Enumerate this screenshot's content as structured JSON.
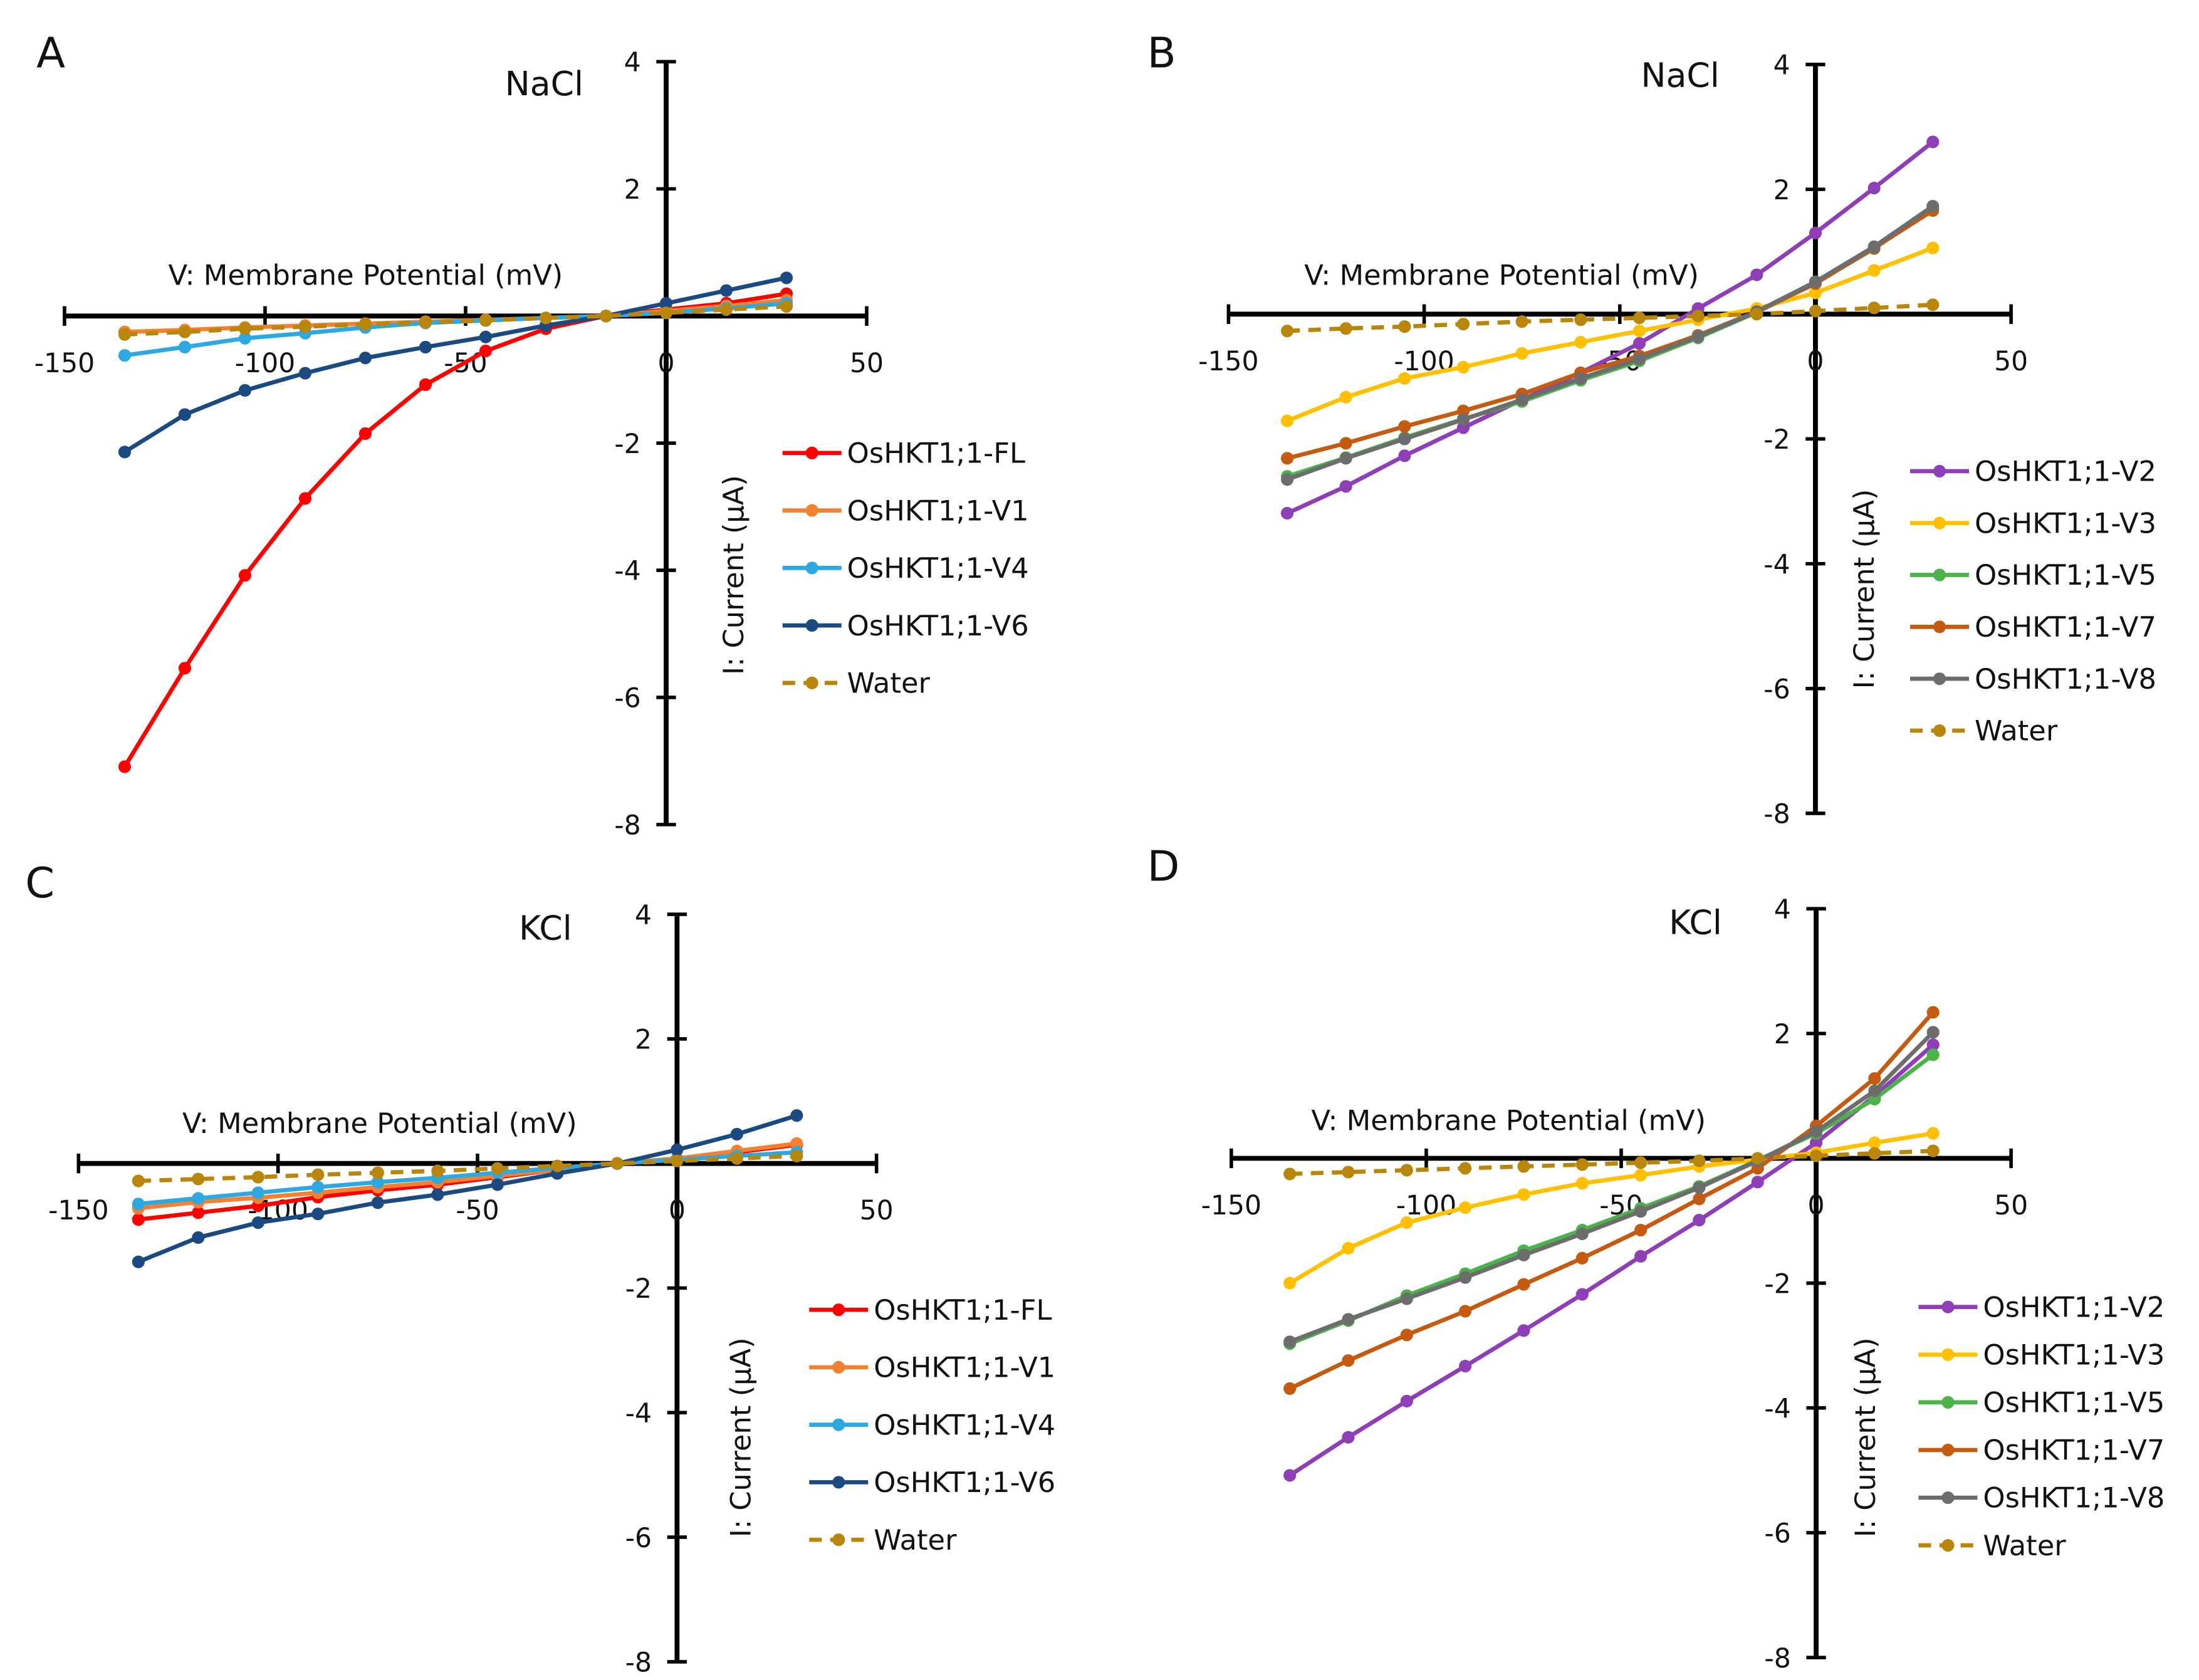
{
  "chart_data": [
    {
      "panel": "A",
      "type": "line",
      "title": "NaCl",
      "xlabel": "V: Membrane Potential (mV)",
      "ylabel": "I: Current (µA)",
      "xlim": [
        -150,
        50
      ],
      "ylim": [
        -8,
        4
      ],
      "xticks": [
        -150,
        -100,
        -50,
        0,
        50
      ],
      "yticks": [
        4,
        2,
        -2,
        -4,
        -6,
        -8
      ],
      "x": [
        -135,
        -120,
        -105,
        -90,
        -75,
        -60,
        -45,
        -30,
        -15,
        0,
        15,
        30
      ],
      "series": [
        {
          "name": "OsHKT1;1-FL",
          "color": "#ff0000",
          "dashed": false,
          "values": [
            -7.09,
            -5.54,
            -4.08,
            -2.87,
            -1.85,
            -1.08,
            -0.55,
            -0.2,
            0,
            0.1,
            0.2,
            0.35
          ]
        },
        {
          "name": "OsHKT1;1-V1",
          "color": "#f4812f",
          "dashed": false,
          "values": [
            -0.25,
            -0.22,
            -0.18,
            -0.15,
            -0.12,
            -0.09,
            -0.06,
            -0.03,
            0,
            0.08,
            0.16,
            0.25
          ]
        },
        {
          "name": "OsHKT1;1-V4",
          "color": "#2ea8e0",
          "dashed": false,
          "values": [
            -0.62,
            -0.49,
            -0.35,
            -0.27,
            -0.18,
            -0.11,
            -0.07,
            -0.03,
            0,
            0.05,
            0.12,
            0.2
          ]
        },
        {
          "name": "OsHKT1;1-V6",
          "color": "#1a4a80",
          "dashed": false,
          "values": [
            -2.14,
            -1.55,
            -1.17,
            -0.9,
            -0.66,
            -0.49,
            -0.33,
            -0.15,
            0,
            0.2,
            0.4,
            0.6
          ]
        },
        {
          "name": "Water",
          "color": "#b8860b",
          "dashed": true,
          "values": [
            -0.29,
            -0.25,
            -0.2,
            -0.17,
            -0.13,
            -0.1,
            -0.07,
            -0.03,
            0,
            0.05,
            0.1,
            0.15
          ]
        }
      ]
    },
    {
      "panel": "B",
      "type": "line",
      "title": "NaCl",
      "xlabel": "V: Membrane Potential (mV)",
      "ylabel": "I: Current (µA)",
      "xlim": [
        -150,
        50
      ],
      "ylim": [
        -8,
        4
      ],
      "xticks": [
        -150,
        -100,
        -50,
        0,
        50
      ],
      "yticks": [
        4,
        2,
        -2,
        -4,
        -6,
        -8
      ],
      "x": [
        -135,
        -120,
        -105,
        -90,
        -75,
        -60,
        -45,
        -30,
        -15,
        0,
        15,
        30
      ],
      "series": [
        {
          "name": "OsHKT1;1-V2",
          "color": "#8e3fb5",
          "dashed": false,
          "values": [
            -3.19,
            -2.76,
            -2.27,
            -1.82,
            -1.37,
            -0.94,
            -0.47,
            0.09,
            0.63,
            1.3,
            2.02,
            2.76
          ]
        },
        {
          "name": "OsHKT1;1-V3",
          "color": "#ffc000",
          "dashed": false,
          "values": [
            -1.71,
            -1.33,
            -1.03,
            -0.85,
            -0.63,
            -0.45,
            -0.27,
            -0.09,
            0.09,
            0.34,
            0.7,
            1.06
          ]
        },
        {
          "name": "OsHKT1;1-V5",
          "color": "#4ab34a",
          "dashed": false,
          "values": [
            -2.6,
            -2.3,
            -1.98,
            -1.68,
            -1.4,
            -1.06,
            -0.75,
            -0.38,
            0.03,
            0.5,
            1.05,
            1.7
          ]
        },
        {
          "name": "OsHKT1;1-V7",
          "color": "#c55a11",
          "dashed": false,
          "values": [
            -2.31,
            -2.07,
            -1.8,
            -1.55,
            -1.28,
            -0.94,
            -0.67,
            -0.34,
            0.04,
            0.49,
            1.06,
            1.66
          ]
        },
        {
          "name": "OsHKT1;1-V8",
          "color": "#6d6d6d",
          "dashed": false,
          "values": [
            -2.65,
            -2.31,
            -2.0,
            -1.69,
            -1.37,
            -1.03,
            -0.72,
            -0.36,
            0.04,
            0.52,
            1.08,
            1.73
          ]
        },
        {
          "name": "Water",
          "color": "#b8860b",
          "dashed": true,
          "values": [
            -0.27,
            -0.23,
            -0.2,
            -0.16,
            -0.12,
            -0.09,
            -0.06,
            -0.03,
            0,
            0.05,
            0.1,
            0.15
          ]
        }
      ]
    },
    {
      "panel": "C",
      "type": "line",
      "title": "KCl",
      "xlabel": "V: Membrane Potential (mV)",
      "ylabel": "I: Current (µA)",
      "xlim": [
        -150,
        50
      ],
      "ylim": [
        -8,
        4
      ],
      "xticks": [
        -150,
        -100,
        -50,
        0,
        50
      ],
      "yticks": [
        4,
        2,
        -2,
        -4,
        -6,
        -8
      ],
      "x": [
        -135,
        -120,
        -105,
        -90,
        -75,
        -60,
        -45,
        -30,
        -15,
        0,
        15,
        30
      ],
      "series": [
        {
          "name": "OsHKT1;1-FL",
          "color": "#ff0000",
          "dashed": false,
          "values": [
            -0.9,
            -0.79,
            -0.68,
            -0.54,
            -0.43,
            -0.34,
            -0.22,
            -0.1,
            0,
            0.08,
            0.18,
            0.3
          ]
        },
        {
          "name": "OsHKT1;1-V1",
          "color": "#f4812f",
          "dashed": false,
          "values": [
            -0.72,
            -0.62,
            -0.55,
            -0.47,
            -0.38,
            -0.3,
            -0.2,
            -0.1,
            0,
            0.08,
            0.2,
            0.32
          ]
        },
        {
          "name": "OsHKT1;1-V4",
          "color": "#2ea8e0",
          "dashed": false,
          "values": [
            -0.65,
            -0.56,
            -0.47,
            -0.38,
            -0.3,
            -0.23,
            -0.15,
            -0.07,
            0,
            0.06,
            0.12,
            0.18
          ]
        },
        {
          "name": "OsHKT1;1-V6",
          "color": "#1a4a80",
          "dashed": false,
          "values": [
            -1.58,
            -1.19,
            -0.95,
            -0.81,
            -0.63,
            -0.5,
            -0.34,
            -0.16,
            0,
            0.22,
            0.47,
            0.77
          ]
        },
        {
          "name": "Water",
          "color": "#b8860b",
          "dashed": true,
          "values": [
            -0.28,
            -0.25,
            -0.22,
            -0.18,
            -0.15,
            -0.12,
            -0.08,
            -0.04,
            0,
            0.04,
            0.08,
            0.12
          ]
        }
      ]
    },
    {
      "panel": "D",
      "type": "line",
      "title": "KCl",
      "xlabel": "V: Membrane Potential (mV)",
      "ylabel": "I: Current (µA)",
      "xlim": [
        -150,
        50
      ],
      "ylim": [
        -8,
        4
      ],
      "xticks": [
        -150,
        -100,
        -50,
        0,
        50
      ],
      "yticks": [
        4,
        2,
        -2,
        -4,
        -6,
        -8
      ],
      "x": [
        -135,
        -120,
        -105,
        -90,
        -75,
        -60,
        -45,
        -30,
        -15,
        0,
        15,
        30
      ],
      "series": [
        {
          "name": "OsHKT1;1-V2",
          "color": "#8e3fb5",
          "dashed": false,
          "values": [
            -5.08,
            -4.47,
            -3.89,
            -3.33,
            -2.76,
            -2.18,
            -1.57,
            -0.99,
            -0.38,
            0.25,
            1.0,
            1.82
          ]
        },
        {
          "name": "OsHKT1;1-V3",
          "color": "#ffc000",
          "dashed": false,
          "values": [
            -2.0,
            -1.44,
            -1.03,
            -0.79,
            -0.58,
            -0.4,
            -0.27,
            -0.13,
            -0.02,
            0.09,
            0.25,
            0.4
          ]
        },
        {
          "name": "OsHKT1;1-V5",
          "color": "#4ab34a",
          "dashed": false,
          "values": [
            -2.97,
            -2.6,
            -2.2,
            -1.85,
            -1.48,
            -1.15,
            -0.8,
            -0.45,
            -0.03,
            0.4,
            0.95,
            1.66
          ]
        },
        {
          "name": "OsHKT1;1-V7",
          "color": "#c55a11",
          "dashed": false,
          "values": [
            -3.69,
            -3.24,
            -2.83,
            -2.45,
            -2.02,
            -1.6,
            -1.15,
            -0.65,
            -0.16,
            0.52,
            1.28,
            2.34
          ]
        },
        {
          "name": "OsHKT1;1-V8",
          "color": "#6d6d6d",
          "dashed": false,
          "values": [
            -2.94,
            -2.58,
            -2.25,
            -1.91,
            -1.55,
            -1.21,
            -0.85,
            -0.47,
            -0.04,
            0.43,
            1.08,
            2.02
          ]
        },
        {
          "name": "Water",
          "color": "#b8860b",
          "dashed": true,
          "values": [
            -0.25,
            -0.22,
            -0.19,
            -0.16,
            -0.13,
            -0.1,
            -0.07,
            -0.04,
            0,
            0.04,
            0.08,
            0.12
          ]
        }
      ]
    }
  ]
}
